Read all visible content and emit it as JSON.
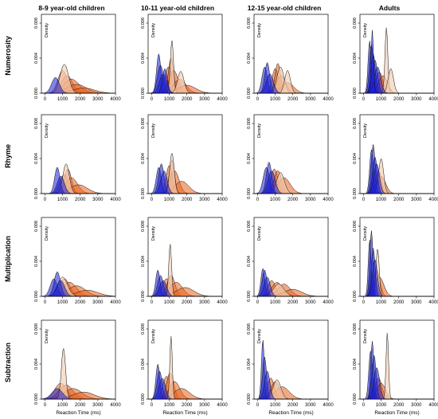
{
  "figure": {
    "column_titles": [
      "8-9 year-old children",
      "10-11 year-old children",
      "12-15 year-old children",
      "Adults"
    ],
    "row_titles": [
      "Numerosity",
      "Rhyme",
      "Multiplication",
      "Subtraction"
    ],
    "y_axis_label": "Density",
    "x_axis_label": "Reaction Time (ms)"
  },
  "colors": {
    "fast_fill": "#1a1fd6",
    "slow_fill": "#e8621e",
    "pale_fill": "#f3d2b8",
    "outline": "#111111"
  },
  "chart_data": {
    "type": "area",
    "layout": "4x4 small multiples (rows = task, columns = age group)",
    "xlabel": "Reaction Time (ms)",
    "ylabel": "Density",
    "xlim": [
      -200,
      4000
    ],
    "ylim": [
      0,
      0.009
    ],
    "x_ticks": [
      0,
      1000,
      2000,
      3000,
      4000
    ],
    "y_ticks": [
      0.0,
      0.004,
      0.008
    ],
    "x_tick_labels": [
      "0",
      "1000",
      "2000",
      "3000",
      "4000"
    ],
    "y_tick_labels": [
      "0.000",
      "0.004",
      "0.008"
    ],
    "panels": [
      {
        "row": "Numerosity",
        "col": "8-9 year-old children",
        "fast": [
          [
            600,
            0.0018,
            220
          ]
        ],
        "slow": [
          [
            1000,
            0.0026,
            260
          ],
          [
            1250,
            0.002,
            320
          ],
          [
            1500,
            0.0016,
            450
          ],
          [
            1800,
            0.001,
            550
          ],
          [
            2200,
            0.0006,
            600
          ]
        ],
        "pale": [
          [
            1100,
            0.0033,
            240
          ]
        ]
      },
      {
        "row": "Numerosity",
        "col": "10-11 year-old children",
        "fast": [
          [
            400,
            0.0045,
            120
          ],
          [
            500,
            0.0032,
            170
          ],
          [
            650,
            0.0022,
            200
          ],
          [
            750,
            0.0028,
            140
          ]
        ],
        "slow": [
          [
            950,
            0.003,
            200
          ],
          [
            1100,
            0.004,
            150
          ],
          [
            1250,
            0.0026,
            250
          ],
          [
            1600,
            0.0016,
            350
          ],
          [
            2000,
            0.0009,
            500
          ]
        ],
        "pale": [
          [
            1150,
            0.006,
            90
          ],
          [
            1650,
            0.0025,
            180
          ]
        ]
      },
      {
        "row": "Numerosity",
        "col": "12-15 year-old children",
        "fast": [
          [
            400,
            0.003,
            150
          ],
          [
            550,
            0.0035,
            140
          ],
          [
            700,
            0.0022,
            200
          ]
        ],
        "slow": [
          [
            1000,
            0.0028,
            180
          ],
          [
            1150,
            0.0034,
            160
          ],
          [
            1350,
            0.002,
            250
          ],
          [
            1700,
            0.0012,
            350
          ]
        ],
        "pale": [
          [
            1300,
            0.003,
            200
          ],
          [
            1700,
            0.0026,
            160
          ]
        ]
      },
      {
        "row": "Numerosity",
        "col": "Adults",
        "fast": [
          [
            350,
            0.006,
            90
          ],
          [
            450,
            0.0055,
            110
          ],
          [
            550,
            0.0045,
            120
          ],
          [
            650,
            0.0038,
            150
          ],
          [
            800,
            0.003,
            180
          ],
          [
            500,
            0.0072,
            70
          ]
        ],
        "slow": [
          [
            900,
            0.0024,
            200
          ],
          [
            1100,
            0.002,
            250
          ]
        ],
        "pale": [
          [
            1300,
            0.0075,
            80
          ],
          [
            1550,
            0.0028,
            150
          ]
        ]
      },
      {
        "row": "Rhyme",
        "col": "8-9 year-old children",
        "fast": [
          [
            700,
            0.003,
            150
          ],
          [
            900,
            0.002,
            200
          ]
        ],
        "slow": [
          [
            1100,
            0.0022,
            250
          ],
          [
            1300,
            0.0028,
            200
          ],
          [
            1500,
            0.0018,
            350
          ],
          [
            1900,
            0.001,
            500
          ]
        ],
        "pale": [
          [
            1200,
            0.0034,
            180
          ]
        ]
      },
      {
        "row": "Rhyme",
        "col": "10-11 year-old children",
        "fast": [
          [
            400,
            0.003,
            140
          ],
          [
            550,
            0.0034,
            150
          ],
          [
            700,
            0.0026,
            180
          ]
        ],
        "slow": [
          [
            1000,
            0.0032,
            180
          ],
          [
            1150,
            0.0038,
            150
          ],
          [
            1300,
            0.0026,
            250
          ],
          [
            1700,
            0.0014,
            400
          ]
        ],
        "pale": [
          [
            1150,
            0.0046,
            130
          ]
        ]
      },
      {
        "row": "Rhyme",
        "col": "12-15 year-old children",
        "fast": [
          [
            500,
            0.003,
            180
          ],
          [
            650,
            0.0036,
            150
          ],
          [
            800,
            0.0026,
            200
          ]
        ],
        "slow": [
          [
            950,
            0.0028,
            200
          ],
          [
            1150,
            0.0026,
            220
          ],
          [
            1500,
            0.0018,
            350
          ]
        ],
        "pale": [
          [
            1300,
            0.0024,
            220
          ]
        ]
      },
      {
        "row": "Rhyme",
        "col": "Adults",
        "fast": [
          [
            450,
            0.005,
            100
          ],
          [
            550,
            0.0056,
            110
          ],
          [
            650,
            0.0042,
            130
          ],
          [
            750,
            0.0034,
            160
          ]
        ],
        "slow": [
          [
            850,
            0.0026,
            180
          ],
          [
            1000,
            0.002,
            250
          ]
        ],
        "pale": [
          [
            1000,
            0.004,
            140
          ]
        ]
      },
      {
        "row": "Multiplication",
        "col": "8-9 year-old children",
        "fast": [
          [
            500,
            0.002,
            200
          ],
          [
            700,
            0.0028,
            180
          ],
          [
            900,
            0.0018,
            220
          ]
        ],
        "slow": [
          [
            1100,
            0.002,
            300
          ],
          [
            1400,
            0.0016,
            400
          ],
          [
            1800,
            0.0012,
            500
          ],
          [
            2400,
            0.0007,
            600
          ]
        ],
        "pale": [
          [
            1000,
            0.0022,
            280
          ]
        ]
      },
      {
        "row": "Multiplication",
        "col": "10-11 year-old children",
        "fast": [
          [
            350,
            0.003,
            120
          ],
          [
            500,
            0.0024,
            160
          ],
          [
            650,
            0.0018,
            200
          ]
        ],
        "slow": [
          [
            850,
            0.002,
            250
          ],
          [
            1100,
            0.0024,
            220
          ],
          [
            1400,
            0.0016,
            350
          ],
          [
            1900,
            0.001,
            500
          ]
        ],
        "pale": [
          [
            1050,
            0.006,
            80
          ]
        ]
      },
      {
        "row": "Multiplication",
        "col": "12-15 year-old children",
        "fast": [
          [
            300,
            0.0032,
            110
          ],
          [
            400,
            0.003,
            130
          ],
          [
            550,
            0.0022,
            170
          ]
        ],
        "slow": [
          [
            800,
            0.0018,
            220
          ],
          [
            1100,
            0.0016,
            300
          ],
          [
            1500,
            0.0014,
            350
          ],
          [
            2000,
            0.0008,
            500
          ]
        ],
        "pale": [
          [
            1200,
            0.0014,
            300
          ]
        ]
      },
      {
        "row": "Multiplication",
        "col": "Adults",
        "fast": [
          [
            350,
            0.0065,
            80
          ],
          [
            450,
            0.0075,
            90
          ],
          [
            550,
            0.0055,
            110
          ],
          [
            650,
            0.0042,
            140
          ]
        ],
        "slow": [
          [
            750,
            0.003,
            180
          ],
          [
            900,
            0.0022,
            250
          ]
        ],
        "pale": [
          [
            800,
            0.0055,
            90
          ]
        ]
      },
      {
        "row": "Subtraction",
        "col": "8-9 year-old children",
        "fast": [
          [
            700,
            0.0012,
            300
          ]
        ],
        "slow": [
          [
            900,
            0.0018,
            350
          ],
          [
            1200,
            0.0016,
            400
          ],
          [
            1600,
            0.0012,
            500
          ],
          [
            2200,
            0.0008,
            600
          ]
        ],
        "pale": [
          [
            1050,
            0.0058,
            120
          ]
        ]
      },
      {
        "row": "Subtraction",
        "col": "10-11 year-old children",
        "fast": [
          [
            350,
            0.004,
            110
          ],
          [
            450,
            0.0032,
            140
          ],
          [
            600,
            0.0024,
            180
          ]
        ],
        "slow": [
          [
            850,
            0.0026,
            220
          ],
          [
            1050,
            0.003,
            200
          ],
          [
            1300,
            0.002,
            300
          ],
          [
            1700,
            0.0012,
            450
          ]
        ],
        "pale": [
          [
            1100,
            0.0072,
            70
          ]
        ]
      },
      {
        "row": "Subtraction",
        "col": "12-15 year-old children",
        "fast": [
          [
            300,
            0.0068,
            80
          ],
          [
            400,
            0.0048,
            110
          ],
          [
            550,
            0.0032,
            150
          ]
        ],
        "slow": [
          [
            750,
            0.0024,
            200
          ],
          [
            1000,
            0.002,
            250
          ],
          [
            1400,
            0.0014,
            400
          ]
        ],
        "pale": [
          [
            1100,
            0.0022,
            220
          ]
        ]
      },
      {
        "row": "Subtraction",
        "col": "Adults",
        "fast": [
          [
            400,
            0.0055,
            100
          ],
          [
            500,
            0.0066,
            90
          ],
          [
            600,
            0.005,
            120
          ],
          [
            750,
            0.0036,
            160
          ]
        ],
        "slow": [
          [
            850,
            0.0024,
            200
          ],
          [
            1000,
            0.0018,
            250
          ]
        ],
        "pale": [
          [
            1350,
            0.0076,
            70
          ]
        ]
      }
    ]
  }
}
